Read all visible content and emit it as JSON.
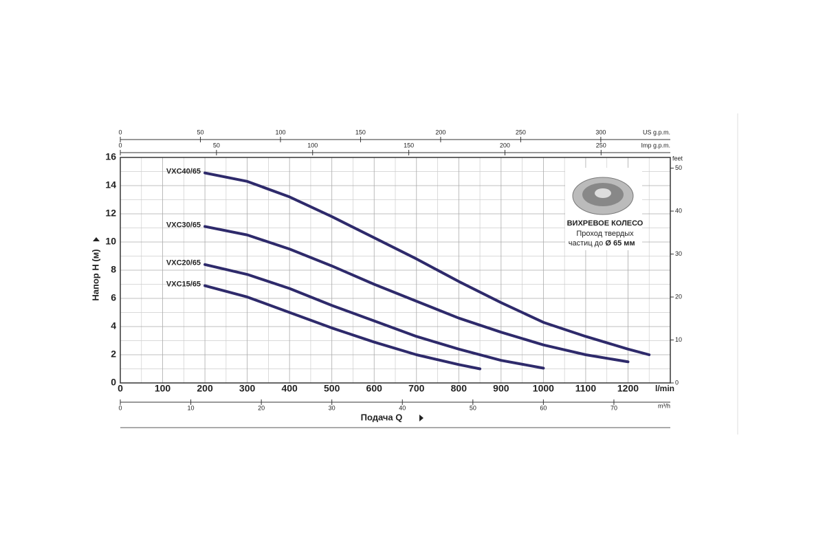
{
  "chart_data": {
    "type": "line",
    "x_label": "Подача Q",
    "x_unit": "l/min",
    "y_label": "Напор H (м)",
    "y2_label": "feet",
    "xlim": [
      0,
      1300
    ],
    "xticks": [
      0,
      100,
      200,
      300,
      400,
      500,
      600,
      700,
      800,
      900,
      1000,
      1100,
      1200
    ],
    "minor_xticks": [
      50,
      150,
      250,
      350,
      450,
      550,
      650,
      750,
      850,
      950,
      1050,
      1150,
      1250
    ],
    "ylim": [
      0,
      16
    ],
    "yticks": [
      0,
      2,
      4,
      6,
      8,
      10,
      12,
      14,
      16
    ],
    "minor_yticks": [
      1,
      3,
      5,
      7,
      9,
      11,
      13,
      15
    ],
    "y2lim": [
      0,
      52.49
    ],
    "y2ticks": [
      0,
      10,
      20,
      30,
      40,
      50
    ],
    "top_axes": [
      {
        "label": "US g.p.m.",
        "lim": [
          0,
          343.4
        ],
        "ticks": [
          0,
          50,
          100,
          150,
          200,
          250,
          300
        ]
      },
      {
        "label": "Imp g.p.m.",
        "lim": [
          0,
          286
        ],
        "ticks": [
          0,
          50,
          100,
          150,
          200,
          250
        ]
      }
    ],
    "bottom_axis": {
      "label": "m³/h",
      "lim": [
        0,
        78
      ],
      "ticks": [
        0,
        10,
        20,
        30,
        40,
        50,
        60,
        70
      ]
    },
    "grid": true,
    "series": [
      {
        "name": "VXC40/65",
        "color": "#2e2a6b",
        "x": [
          200,
          300,
          400,
          500,
          600,
          700,
          800,
          900,
          1000,
          1100,
          1200,
          1250
        ],
        "values": [
          14.9,
          14.3,
          13.2,
          11.8,
          10.3,
          8.8,
          7.2,
          5.7,
          4.3,
          3.3,
          2.4,
          2.0
        ]
      },
      {
        "name": "VXC30/65",
        "color": "#2e2a6b",
        "x": [
          200,
          300,
          400,
          500,
          600,
          700,
          800,
          900,
          1000,
          1100,
          1200
        ],
        "values": [
          11.1,
          10.5,
          9.5,
          8.3,
          7.0,
          5.8,
          4.6,
          3.6,
          2.7,
          2.0,
          1.5
        ]
      },
      {
        "name": "VXC20/65",
        "color": "#2e2a6b",
        "x": [
          200,
          300,
          400,
          500,
          600,
          700,
          800,
          900,
          1000
        ],
        "values": [
          8.4,
          7.7,
          6.7,
          5.5,
          4.4,
          3.3,
          2.4,
          1.6,
          1.05
        ]
      },
      {
        "name": "VXC15/65",
        "color": "#2e2a6b",
        "x": [
          200,
          300,
          400,
          500,
          600,
          700,
          800,
          850
        ],
        "values": [
          6.9,
          6.1,
          5.0,
          3.9,
          2.9,
          2.0,
          1.3,
          1.0
        ]
      }
    ],
    "annotation": {
      "title": "ВИХРЕВОЕ КОЛЕСО",
      "lines": [
        "Проход твердых",
        "частиц до"
      ],
      "size": "Ø 65 мм"
    }
  }
}
